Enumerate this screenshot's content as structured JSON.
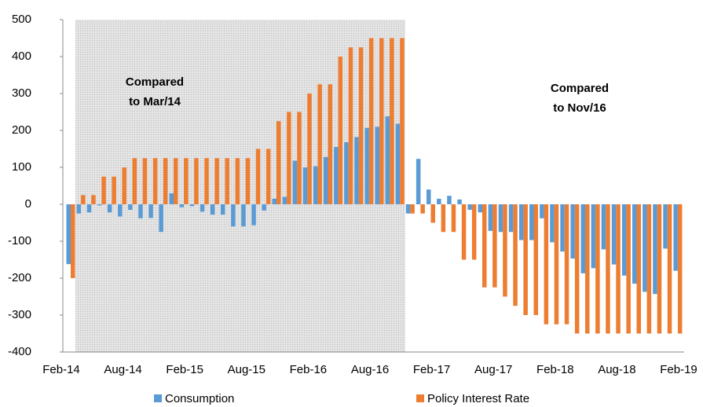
{
  "chart_data": {
    "type": "bar",
    "categories": [
      "Feb-14",
      null,
      null,
      null,
      null,
      null,
      "Aug-14",
      null,
      null,
      null,
      null,
      null,
      "Feb-15",
      null,
      null,
      null,
      null,
      null,
      "Aug-15",
      null,
      null,
      null,
      null,
      null,
      "Feb-16",
      null,
      null,
      null,
      null,
      null,
      "Aug-16",
      null,
      null,
      null,
      null,
      null,
      "Feb-17",
      null,
      null,
      null,
      null,
      null,
      "Aug-17",
      null,
      null,
      null,
      null,
      null,
      "Feb-18",
      null,
      null,
      null,
      null,
      null,
      "Aug-18",
      null,
      null,
      null,
      null,
      null,
      "Feb-19"
    ],
    "series": [
      {
        "name": "Consumption",
        "color": "#5b9bd5",
        "values": [
          -162,
          -25,
          -22,
          -3,
          -22,
          -33,
          -15,
          -38,
          -37,
          -75,
          30,
          -8,
          -5,
          -20,
          -28,
          -28,
          -60,
          -60,
          -57,
          -17,
          15,
          20,
          118,
          100,
          103,
          128,
          155,
          168,
          182,
          207,
          210,
          238,
          218,
          -25,
          123,
          40,
          15,
          23,
          13,
          -15,
          -22,
          -72,
          -75,
          -75,
          -97,
          -97,
          -38,
          -103,
          -128,
          -147,
          -187,
          -173,
          -122,
          -163,
          -193,
          -215,
          -237,
          -243,
          -120,
          -180,
          null
        ]
      },
      {
        "name": "Policy Interest Rate",
        "color": "#ed7d31",
        "values": [
          -200,
          25,
          25,
          75,
          75,
          100,
          125,
          125,
          125,
          125,
          125,
          125,
          125,
          125,
          125,
          125,
          125,
          125,
          150,
          150,
          225,
          250,
          250,
          300,
          325,
          325,
          400,
          425,
          425,
          450,
          450,
          450,
          450,
          -25,
          -25,
          -50,
          -75,
          -75,
          -150,
          -150,
          -225,
          -225,
          -250,
          -275,
          -300,
          -300,
          -325,
          -325,
          -325,
          -350,
          -350,
          -350,
          -350,
          -350,
          -350,
          -350,
          -350,
          -350,
          -350,
          -350,
          null
        ]
      }
    ],
    "ylim": [
      -400,
      500
    ],
    "yticks": [
      -400,
      -300,
      -200,
      -100,
      0,
      100,
      200,
      300,
      400,
      500
    ],
    "annotations": [
      {
        "lines": [
          "Compared",
          "to Mar/14"
        ]
      },
      {
        "lines": [
          "Compared",
          "to Nov/16"
        ]
      }
    ],
    "grid": false,
    "legend": "bottom"
  }
}
